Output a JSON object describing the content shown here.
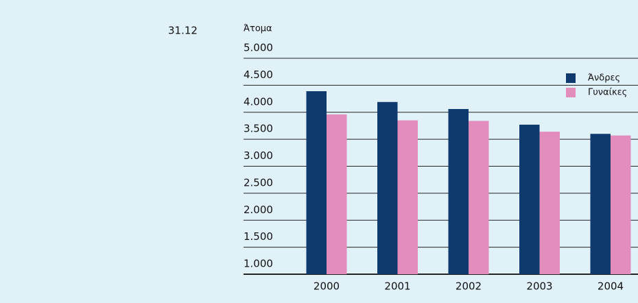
{
  "chart_data": {
    "type": "bar",
    "title": "31.12",
    "ylabel": "Άτομα",
    "categories": [
      "2000",
      "2001",
      "2002",
      "2003",
      "2004"
    ],
    "series": [
      {
        "name": "Άνδρες",
        "color": "#0e3a6e",
        "values": [
          4390,
          4190,
          4060,
          3770,
          3600
        ]
      },
      {
        "name": "Γυναίκες",
        "color": "#e38dbd",
        "values": [
          3960,
          3850,
          3840,
          3640,
          3570
        ]
      }
    ],
    "ylim": [
      1000,
      5000
    ],
    "yticks": [
      {
        "value": 1000,
        "label": "1.000"
      },
      {
        "value": 1500,
        "label": "1.500"
      },
      {
        "value": 2000,
        "label": "2.000"
      },
      {
        "value": 2500,
        "label": "2.500"
      },
      {
        "value": 3000,
        "label": "3.000"
      },
      {
        "value": 3500,
        "label": "3.500"
      },
      {
        "value": 4000,
        "label": "4.000"
      },
      {
        "value": 4500,
        "label": "4.500"
      },
      {
        "value": 5000,
        "label": "5.000"
      }
    ],
    "grid": true,
    "legend": "upper right"
  }
}
